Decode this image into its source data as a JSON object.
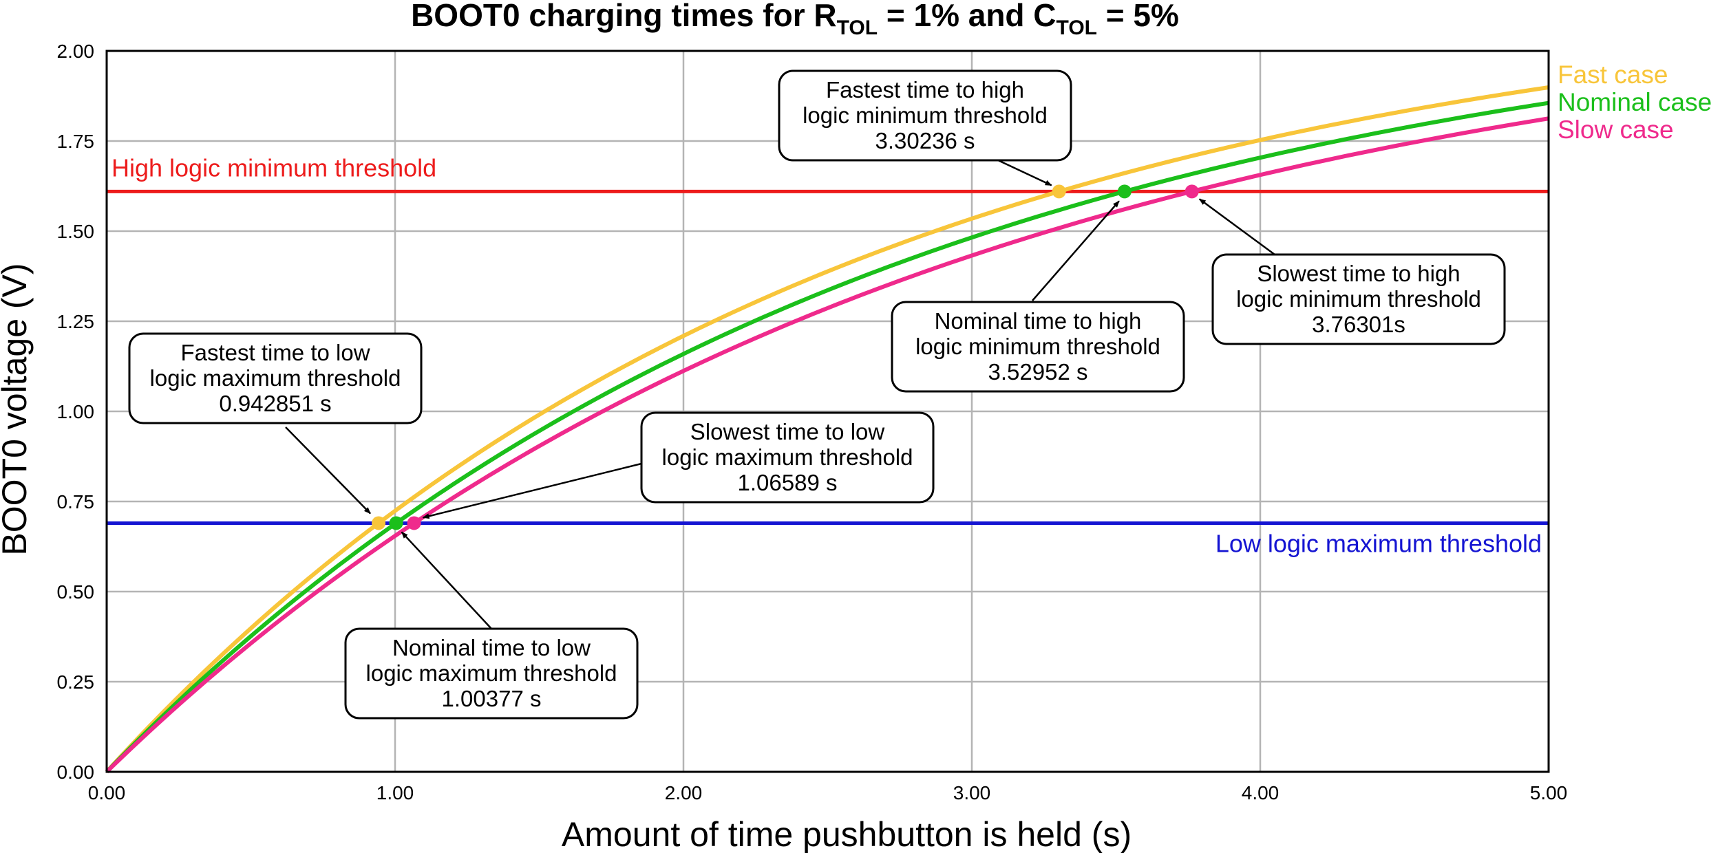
{
  "chart_data": {
    "type": "line",
    "title": {
      "parts": [
        "BOOT0 charging times for R",
        "TOL",
        " = 1% and C",
        "TOL",
        " = 5%"
      ]
    },
    "xlabel": "Amount of time pushbutton is held (s)",
    "ylabel": "BOOT0 voltage (V)",
    "xlim": [
      0,
      5
    ],
    "ylim": [
      0,
      2
    ],
    "x_ticks": [
      0,
      1,
      2,
      3,
      4,
      5
    ],
    "x_tick_labels": [
      "0.00",
      "1.00",
      "2.00",
      "3.00",
      "4.00",
      "5.00"
    ],
    "y_ticks": [
      0,
      0.25,
      0.5,
      0.75,
      1,
      1.25,
      1.5,
      1.75,
      2
    ],
    "y_tick_labels": [
      "0.00",
      "0.25",
      "0.50",
      "0.75",
      "1.00",
      "1.25",
      "1.50",
      "1.75",
      "2.00"
    ],
    "grid": true,
    "legend_position": "right-top-outside",
    "series": [
      {
        "name": "Fast case",
        "color": "#f8c53a",
        "x": [
          0,
          0.25,
          0.5,
          0.75,
          0.942851,
          1,
          1.25,
          1.5,
          1.75,
          2,
          2.25,
          2.5,
          2.75,
          3,
          3.30236,
          3.5,
          3.75,
          4,
          4.25,
          4.5,
          4.75,
          5
        ],
        "y": [
          0,
          0.218,
          0.416,
          0.596,
          0.69,
          0.759,
          0.907,
          1.041,
          1.163,
          1.274,
          1.375,
          1.466,
          1.549,
          1.624,
          1.61,
          1.755,
          1.811,
          1.759,
          1.803,
          1.842,
          1.878,
          1.907
        ]
      },
      {
        "name": "Nominal case",
        "color": "#1bbf1b",
        "x": [
          0,
          0.25,
          0.5,
          0.75,
          1.00377,
          1.25,
          1.5,
          1.75,
          2,
          2.25,
          2.5,
          2.75,
          3,
          3.25,
          3.52952,
          3.75,
          4,
          4.25,
          4.5,
          4.75,
          5
        ],
        "y": [
          0,
          0.206,
          0.393,
          0.564,
          0.69,
          0.862,
          0.991,
          1.108,
          1.215,
          1.313,
          1.402,
          1.483,
          1.557,
          1.57,
          1.61,
          1.672,
          1.709,
          1.754,
          1.795,
          1.832,
          1.866
        ]
      },
      {
        "name": "Slow case",
        "color": "#ef2a8c",
        "x": [
          0,
          0.25,
          0.5,
          0.75,
          1.06589,
          1.25,
          1.5,
          1.75,
          2,
          2.25,
          2.5,
          2.75,
          3,
          3.25,
          3.5,
          3.76301,
          4,
          4.25,
          4.5,
          4.75,
          5
        ],
        "y": [
          0,
          0.195,
          0.372,
          0.535,
          0.69,
          0.82,
          0.945,
          1.059,
          1.164,
          1.261,
          1.35,
          1.432,
          1.507,
          1.548,
          1.575,
          1.61,
          1.666,
          1.711,
          1.752,
          1.79,
          1.825
        ]
      }
    ],
    "reference_lines": [
      {
        "label": "High logic minimum threshold",
        "y": 1.61,
        "color": "#ed1c1c"
      },
      {
        "label": "Low logic maximum threshold",
        "y": 0.69,
        "color": "#1414d2"
      }
    ],
    "marked_points": [
      {
        "series": "Fast case",
        "x": 0.942851,
        "y": 0.69,
        "color": "#f8c53a"
      },
      {
        "series": "Nominal case",
        "x": 1.00377,
        "y": 0.69,
        "color": "#1bbf1b"
      },
      {
        "series": "Slow case",
        "x": 1.06589,
        "y": 0.69,
        "color": "#ef2a8c"
      },
      {
        "series": "Fast case",
        "x": 3.30236,
        "y": 1.61,
        "color": "#f8c53a"
      },
      {
        "series": "Nominal case",
        "x": 3.52952,
        "y": 1.61,
        "color": "#1bbf1b"
      },
      {
        "series": "Slow case",
        "x": 3.76301,
        "y": 1.61,
        "color": "#ef2a8c"
      }
    ],
    "annotations": [
      {
        "lines": [
          "Fastest time to low",
          "logic maximum threshold",
          "0.942851 s"
        ],
        "target": {
          "x": 0.942851,
          "y": 0.69
        }
      },
      {
        "lines": [
          "Slowest time to low",
          "logic maximum threshold",
          "1.06589 s"
        ],
        "target": {
          "x": 1.06589,
          "y": 0.69
        }
      },
      {
        "lines": [
          "Nominal time to low",
          "logic maximum threshold",
          "1.00377 s"
        ],
        "target": {
          "x": 1.00377,
          "y": 0.69
        }
      },
      {
        "lines": [
          "Fastest time to high",
          "logic minimum threshold",
          "3.30236 s"
        ],
        "target": {
          "x": 3.30236,
          "y": 1.61
        }
      },
      {
        "lines": [
          "Nominal time to high",
          "logic minimum threshold",
          "3.52952 s"
        ],
        "target": {
          "x": 3.52952,
          "y": 1.61
        }
      },
      {
        "lines": [
          "Slowest time to high",
          "logic minimum threshold",
          "3.76301s"
        ],
        "target": {
          "x": 3.76301,
          "y": 1.61
        }
      }
    ]
  }
}
